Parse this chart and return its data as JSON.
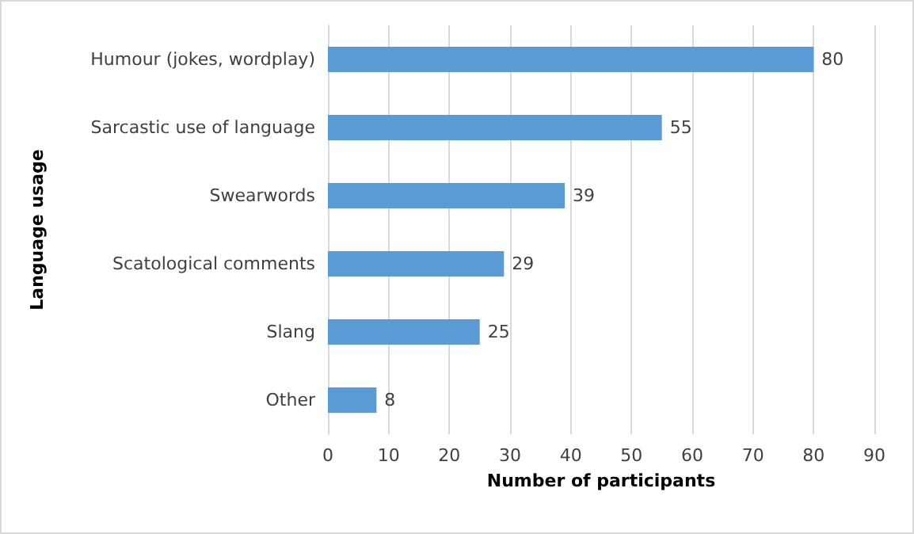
{
  "chart_data": {
    "type": "bar",
    "orientation": "horizontal",
    "categories": [
      "Humour (jokes, wordplay)",
      "Sarcastic use of language",
      "Swearwords",
      "Scatological comments",
      "Slang",
      "Other"
    ],
    "values": [
      80,
      55,
      39,
      29,
      25,
      8
    ],
    "color": "#5b9bd5",
    "xlabel": "Number of participants",
    "ylabel": "Language usage",
    "xlim": [
      0,
      90
    ],
    "xticks": [
      0,
      10,
      20,
      30,
      40,
      50,
      60,
      70,
      80,
      90
    ],
    "grid": "x",
    "data_labels": true
  }
}
